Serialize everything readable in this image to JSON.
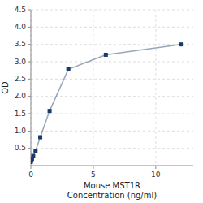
{
  "chart_data": {
    "type": "line",
    "x": [
      0.0,
      0.047,
      0.094,
      0.188,
      0.375,
      0.75,
      1.5,
      3.0,
      6.0,
      12.0
    ],
    "values": [
      0.105,
      0.15,
      0.2,
      0.28,
      0.42,
      0.82,
      1.58,
      2.78,
      3.2,
      3.5
    ],
    "xlabel": "Mouse MST1R\nConcentration (ng/ml)",
    "ylabel": "OD",
    "xlim": [
      0,
      13
    ],
    "xticks": [
      0,
      5,
      10
    ],
    "ylim": [
      0,
      4.5
    ],
    "yticks": [
      0.5,
      {
        "value": 1.0,
        "label": "1.0"
      },
      1.5,
      {
        "value": 2.0,
        "label": "2.0"
      },
      2.5,
      {
        "value": 3.0,
        "label": "3.0"
      },
      3.5,
      {
        "value": 4.0,
        "label": "4.0"
      },
      4.5
    ],
    "color": "#1a3a6b",
    "marker": "square",
    "grid": true
  }
}
